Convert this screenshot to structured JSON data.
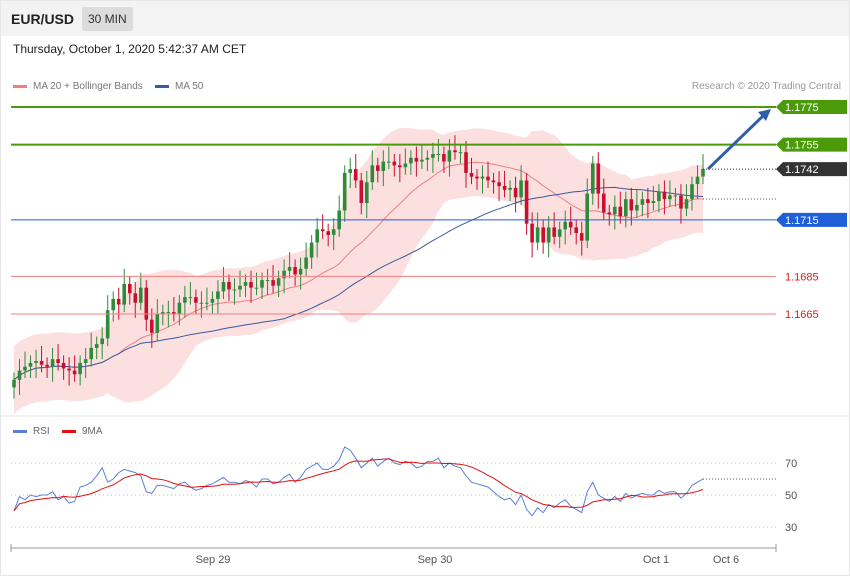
{
  "header": {
    "symbol": "EUR/USD",
    "timeframe": "30 MIN",
    "datetime": "Thursday, October 1, 2020 5:42:37 AM CET"
  },
  "legend": {
    "ma20_label": "MA 20 + Bollinger Bands",
    "ma50_label": "MA 50",
    "ma20_color": "#f08080",
    "ma50_color": "#3a5aa0"
  },
  "credit": "Research © 2020 Trading Central",
  "rsi_legend": {
    "rsi_label": "RSI",
    "ma_label": "9MA",
    "rsi_color": "#5b7fd6",
    "ma_color": "#e01010"
  },
  "chart_data": {
    "type": "candlestick",
    "price_axis_range": [
      1.164,
      1.179
    ],
    "x_labels": [
      "Sep 29",
      "Sep 30",
      "Oct 1",
      "Oct 6"
    ],
    "levels": [
      {
        "value": 1.1775,
        "label": "1.1775",
        "style": "green-line-label"
      },
      {
        "value": 1.1755,
        "label": "1.1755",
        "style": "green-line-label"
      },
      {
        "value": 1.1742,
        "label": "1.1742",
        "style": "current-price-dark"
      },
      {
        "value": 1.1715,
        "label": "1.1715",
        "style": "blue-line-label"
      },
      {
        "value": 1.1685,
        "label": "1.1685",
        "style": "red-line-text"
      },
      {
        "value": 1.1665,
        "label": "1.1665",
        "style": "red-line-text"
      }
    ],
    "forecast_arrow": {
      "from": 1.1742,
      "to": 1.1775
    },
    "closes": [
      1.163,
      1.1635,
      1.1637,
      1.1639,
      1.164,
      1.1638,
      1.1637,
      1.1641,
      1.1639,
      1.1636,
      1.1635,
      1.1633,
      1.1639,
      1.1641,
      1.1647,
      1.1649,
      1.1652,
      1.1667,
      1.1673,
      1.167,
      1.1681,
      1.1676,
      1.1671,
      1.1679,
      1.1662,
      1.1655,
      1.1665,
      1.1666,
      1.1666,
      1.1665,
      1.1671,
      1.1674,
      1.1674,
      1.1671,
      1.1671,
      1.1671,
      1.1673,
      1.1677,
      1.1682,
      1.1678,
      1.1678,
      1.168,
      1.1682,
      1.1679,
      1.1679,
      1.1683,
      1.1683,
      1.168,
      1.1684,
      1.1688,
      1.169,
      1.1686,
      1.1689,
      1.1695,
      1.1703,
      1.171,
      1.1709,
      1.1707,
      1.171,
      1.172,
      1.174,
      1.1742,
      1.1736,
      1.1724,
      1.1735,
      1.1744,
      1.1741,
      1.1746,
      1.1746,
      1.1744,
      1.1743,
      1.1745,
      1.1748,
      1.1746,
      1.1747,
      1.1748,
      1.175,
      1.175,
      1.1746,
      1.1752,
      1.1751,
      1.1751,
      1.174,
      1.1738,
      1.1737,
      1.1738,
      1.1736,
      1.1735,
      1.1733,
      1.1731,
      1.1732,
      1.1727,
      1.1736,
      1.1713,
      1.1703,
      1.1711,
      1.1703,
      1.1711,
      1.1706,
      1.171,
      1.1714,
      1.1711,
      1.1708,
      1.1704,
      1.1729,
      1.1745,
      1.1729,
      1.1719,
      1.1718,
      1.1722,
      1.1717,
      1.1726,
      1.172,
      1.1723,
      1.1726,
      1.1724,
      1.1725,
      1.173,
      1.1726,
      1.1728,
      1.1728,
      1.1721,
      1.1726,
      1.1734,
      1.1738,
      1.1742
    ],
    "rsi": {
      "range": [
        20,
        80
      ],
      "ticks": [
        70,
        50,
        30
      ],
      "rsi_values": [
        40,
        49,
        47,
        50,
        49,
        50,
        50,
        52,
        47,
        49,
        45,
        46,
        55,
        56,
        58,
        62,
        67,
        58,
        60,
        64,
        66,
        65,
        64,
        62,
        52,
        51,
        56,
        56,
        55,
        54,
        57,
        58,
        55,
        53,
        54,
        56,
        57,
        59,
        61,
        58,
        58,
        57,
        59,
        58,
        55,
        60,
        60,
        57,
        58,
        61,
        63,
        58,
        61,
        66,
        68,
        70,
        66,
        66,
        68,
        72,
        80,
        78,
        73,
        67,
        70,
        73,
        68,
        71,
        73,
        70,
        69,
        71,
        70,
        67,
        68,
        71,
        71,
        73,
        67,
        70,
        68,
        67,
        62,
        58,
        57,
        56,
        55,
        52,
        49,
        47,
        48,
        44,
        50,
        41,
        37,
        42,
        39,
        44,
        42,
        45,
        47,
        43,
        41,
        39,
        52,
        58,
        50,
        48,
        46,
        49,
        46,
        51,
        48,
        50,
        51,
        50,
        50,
        53,
        51,
        52,
        52,
        48,
        51,
        56,
        58,
        60
      ]
    }
  }
}
